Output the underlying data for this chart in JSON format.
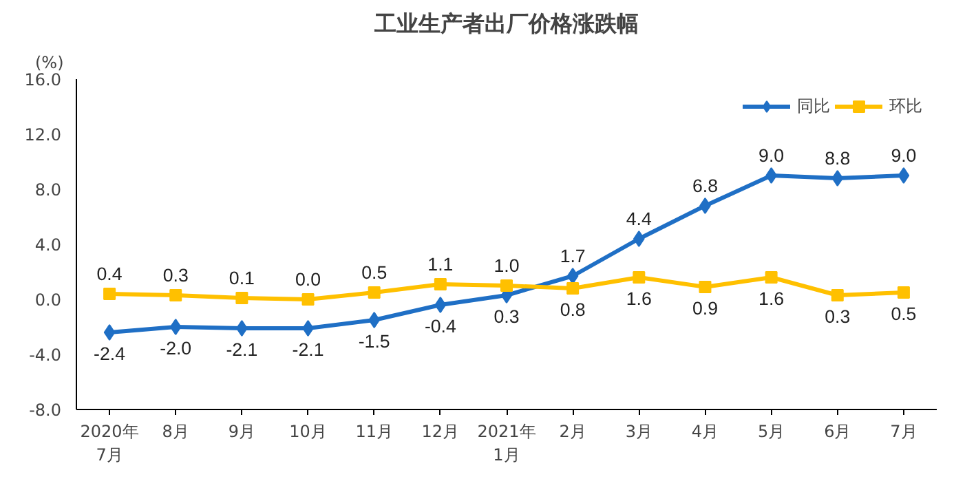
{
  "chart_data": {
    "type": "line",
    "title": "工业生产者出厂价格涨跌幅",
    "ylabel": "(%)",
    "categories": [
      "2020年\n7月",
      "8月",
      "9月",
      "10月",
      "11月",
      "12月",
      "2021年\n1月",
      "2月",
      "3月",
      "4月",
      "5月",
      "6月",
      "7月"
    ],
    "series": [
      {
        "name": "同比",
        "color": "#1f6fc5",
        "marker": "diamond",
        "values": [
          -2.4,
          -2.0,
          -2.1,
          -2.1,
          -1.5,
          -0.4,
          0.3,
          1.7,
          4.4,
          6.8,
          9.0,
          8.8,
          9.0
        ],
        "value_labels": [
          "-2.4",
          "-2.0",
          "-2.1",
          "-2.1",
          "-1.5",
          "-0.4",
          "0.3",
          "1.7",
          "4.4",
          "6.8",
          "9.0",
          "8.8",
          "9.0"
        ]
      },
      {
        "name": "环比",
        "color": "#ffc000",
        "marker": "square",
        "values": [
          0.4,
          0.3,
          0.1,
          0.0,
          0.5,
          1.1,
          1.0,
          0.8,
          1.6,
          0.9,
          1.6,
          0.3,
          0.5
        ],
        "value_labels": [
          "0.4",
          "0.3",
          "0.1",
          "0.0",
          "0.5",
          "1.1",
          "1.0",
          "0.8",
          "1.6",
          "0.9",
          "1.6",
          "0.3",
          "0.5"
        ]
      }
    ],
    "ylim": [
      -8,
      16
    ],
    "yticks": [
      {
        "value": -8,
        "label": "-8.0"
      },
      {
        "value": -4,
        "label": "-4.0"
      },
      {
        "value": 0,
        "label": "0.0"
      },
      {
        "value": 4,
        "label": "4.0"
      },
      {
        "value": 8,
        "label": "8.0"
      },
      {
        "value": 12,
        "label": "12.0"
      },
      {
        "value": 16,
        "label": "16.0"
      }
    ],
    "legend": "top right",
    "grid": false,
    "line_style": "solid"
  }
}
